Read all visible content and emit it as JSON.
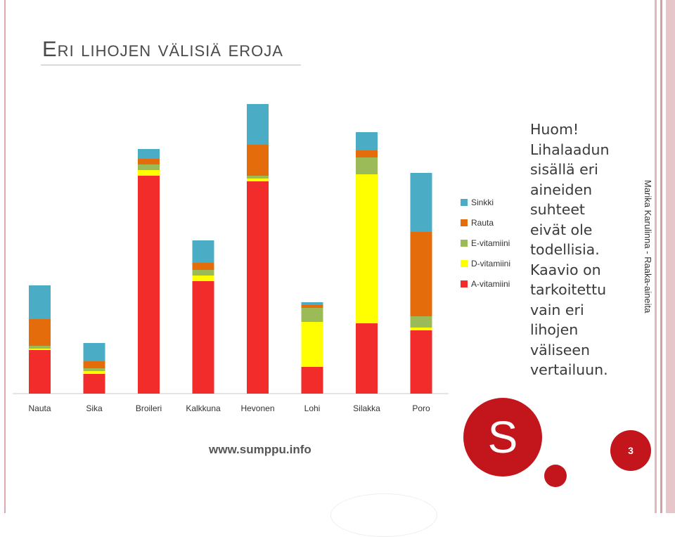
{
  "slide": {
    "title": "Eri lihojen välisiä eroja",
    "side_text": "Marika Karulinna - Raaka-aineita",
    "page_number": "3",
    "note_lines": [
      "Huom!",
      "Lihalaadun",
      "sisällä eri",
      "aineiden",
      "suhteet",
      "eivät ole",
      "todellisia.",
      "Kaavio on",
      "tarkoitettu",
      "vain eri",
      "lihojen",
      "väliseen",
      "vertailuun."
    ]
  },
  "logo": {
    "letter": "S"
  },
  "colors": {
    "accent": "#c2151c",
    "rule": "#d9a9ad"
  },
  "chart_data": {
    "type": "bar",
    "stacked": true,
    "categories": [
      "Nauta",
      "Sika",
      "Broileri",
      "Kalkkuna",
      "Hevonen",
      "Lohi",
      "Silakka",
      "Poro"
    ],
    "series": [
      {
        "name": "A-vitamiini",
        "color": "#f22b2b",
        "values": [
          15.5,
          7,
          77.5,
          40,
          75.5,
          9.5,
          25,
          22.5
        ]
      },
      {
        "name": "D-vitamiini",
        "color": "#ffff00",
        "values": [
          0.5,
          1,
          2,
          2,
          1,
          16,
          53,
          1
        ]
      },
      {
        "name": "E-vitamiini",
        "color": "#9bbb59",
        "values": [
          1,
          1,
          2,
          2,
          1,
          5,
          6,
          4
        ]
      },
      {
        "name": "Rauta",
        "color": "#e46c0a",
        "values": [
          9.5,
          2.5,
          2,
          2.5,
          11,
          1,
          2.5,
          30
        ]
      },
      {
        "name": "Sinkki",
        "color": "#4bacc6",
        "values": [
          12,
          6.5,
          3.5,
          8,
          14.5,
          1,
          6.5,
          21
        ]
      }
    ],
    "legend_position": "right",
    "grid": false,
    "axis": {
      "y_visible": false,
      "ylim": [
        0,
        110
      ]
    },
    "annotation": "www.sumppu.info"
  }
}
